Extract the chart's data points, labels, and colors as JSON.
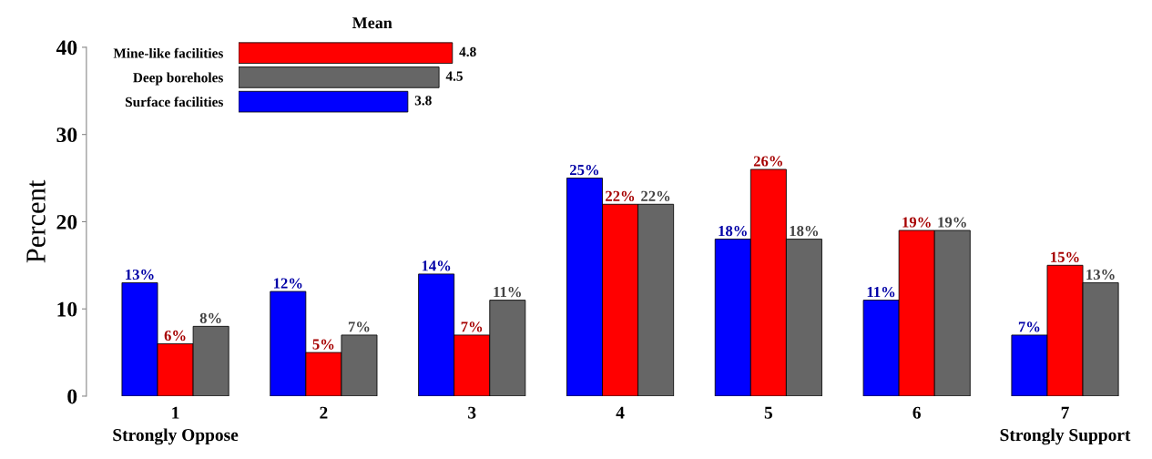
{
  "chart_data": [
    {
      "type": "bar",
      "ylabel": "Percent",
      "categories": [
        "1\nStrongly Oppose",
        "2",
        "3",
        "4",
        "5",
        "6",
        "7\nStrongly Support"
      ],
      "ylim": [
        0,
        40
      ],
      "yticks": [
        0,
        10,
        20,
        30,
        40
      ],
      "grid": false,
      "legend": false,
      "series": [
        {
          "color": "#0000ff",
          "values": [
            13,
            12,
            14,
            25,
            18,
            11,
            7
          ],
          "value_labels": [
            "13%",
            "12%",
            "14%",
            "25%",
            "18%",
            "11%",
            "7%"
          ]
        },
        {
          "color": "#ff0000",
          "values": [
            6,
            5,
            7,
            22,
            26,
            19,
            15
          ],
          "value_labels": [
            "6%",
            "5%",
            "7%",
            "22%",
            "26%",
            "19%",
            "15%"
          ]
        },
        {
          "color": "#666666",
          "values": [
            8,
            7,
            11,
            22,
            18,
            19,
            13
          ],
          "value_labels": [
            "8%",
            "7%",
            "11%",
            "22%",
            "18%",
            "19%",
            "13%"
          ]
        }
      ]
    },
    {
      "type": "bar",
      "title": "Mean",
      "orientation": "horizontal",
      "categories": [
        "Mine-like facilities",
        "Deep boreholes",
        "Surface facilities"
      ],
      "values": [
        4.8,
        4.5,
        3.8
      ],
      "colors": [
        "#ff0000",
        "#666666",
        "#0000ff"
      ],
      "data_labels": true,
      "tick_labels": "y",
      "legend": false
    }
  ]
}
